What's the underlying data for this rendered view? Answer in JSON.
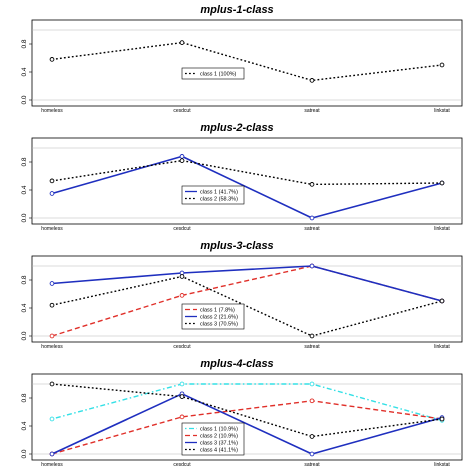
{
  "chart_data": [
    {
      "type": "line",
      "title": "mplus-1-class",
      "categories": [
        "homeless",
        "cesdcut",
        "satreat",
        "linkstat"
      ],
      "ylim": [
        0,
        1
      ],
      "yticks": [
        "0.0",
        "0.4",
        "0.8"
      ],
      "legend_position": "center",
      "series": [
        {
          "name": "class 1 (100%)",
          "color": "#000000",
          "dash": "dotted",
          "values": [
            0.58,
            0.82,
            0.28,
            0.5
          ]
        }
      ]
    },
    {
      "type": "line",
      "title": "mplus-2-class",
      "categories": [
        "homeless",
        "cesdcut",
        "satreat",
        "linkstat"
      ],
      "ylim": [
        0,
        1
      ],
      "yticks": [
        "0.0",
        "0.4",
        "0.8"
      ],
      "legend_position": "center-right",
      "series": [
        {
          "name": "class 1 (41.7%)",
          "color": "#1f2fbf",
          "dash": "solid",
          "values": [
            0.35,
            0.88,
            0.0,
            0.5
          ]
        },
        {
          "name": "class 2 (58.3%)",
          "color": "#000000",
          "dash": "dotted",
          "values": [
            0.53,
            0.82,
            0.48,
            0.5
          ]
        }
      ]
    },
    {
      "type": "line",
      "title": "mplus-3-class",
      "categories": [
        "homeless",
        "cesdcut",
        "satreat",
        "linkstat"
      ],
      "ylim": [
        0,
        1
      ],
      "yticks": [
        "0.0",
        "0.4",
        "0.8"
      ],
      "legend_position": "center-right",
      "series": [
        {
          "name": "class 1 (7.8%)",
          "color": "#e0302a",
          "dash": "dashed",
          "values": [
            0.0,
            0.58,
            1.0,
            0.5
          ]
        },
        {
          "name": "class 2 (21.6%)",
          "color": "#1f2fbf",
          "dash": "solid",
          "values": [
            0.75,
            0.9,
            1.0,
            0.5
          ]
        },
        {
          "name": "class 3 (70.5%)",
          "color": "#000000",
          "dash": "dotted",
          "values": [
            0.44,
            0.85,
            0.0,
            0.5
          ]
        }
      ]
    },
    {
      "type": "line",
      "title": "mplus-4-class",
      "categories": [
        "homeless",
        "cesdcut",
        "satreat",
        "linkstat"
      ],
      "ylim": [
        0,
        1
      ],
      "yticks": [
        "0.0",
        "0.4",
        "0.8"
      ],
      "legend_position": "center-right",
      "series": [
        {
          "name": "class 1 (10.9%)",
          "color": "#33e0e6",
          "dash": "dotdash",
          "values": [
            0.5,
            1.0,
            1.0,
            0.48
          ]
        },
        {
          "name": "class 2 (10.9%)",
          "color": "#e0302a",
          "dash": "dashed",
          "values": [
            0.0,
            0.53,
            0.76,
            0.5
          ]
        },
        {
          "name": "class 3 (37.1%)",
          "color": "#1f2fbf",
          "dash": "solid",
          "values": [
            0.0,
            0.86,
            0.0,
            0.52
          ]
        },
        {
          "name": "class 4 (41.1%)",
          "color": "#000000",
          "dash": "dotted",
          "values": [
            1.0,
            0.82,
            0.25,
            0.5
          ]
        }
      ]
    }
  ]
}
